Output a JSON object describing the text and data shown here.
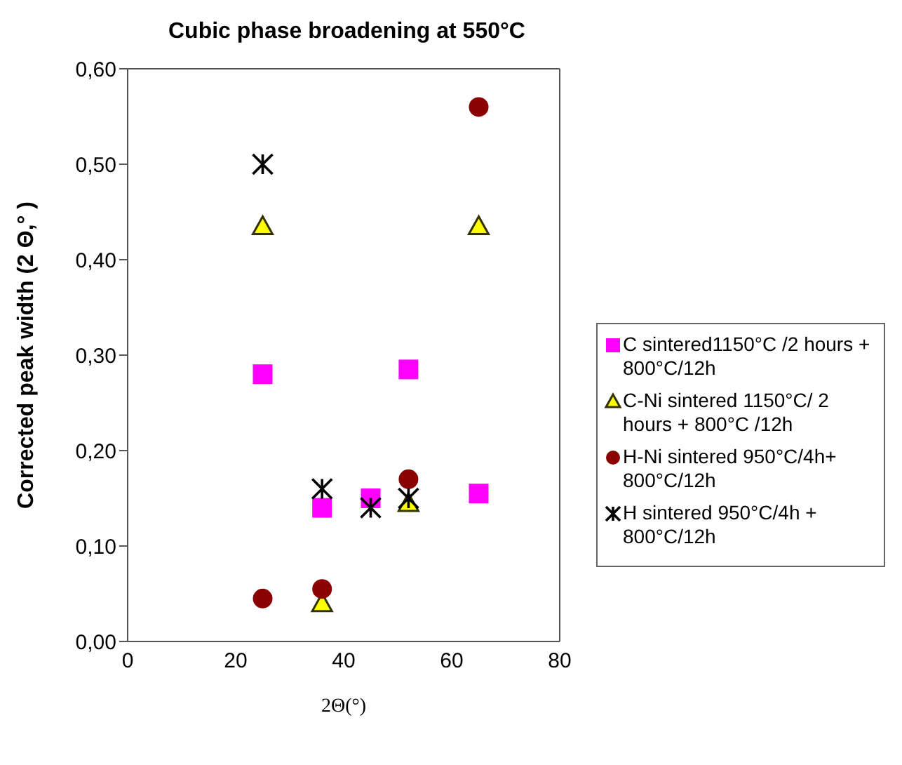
{
  "chart_data": {
    "type": "scatter",
    "title": "Cubic phase broadening at 550°C",
    "xlabel": "2Θ(°)",
    "ylabel": "Corrected peak width (2 Θ,° )",
    "xlim": [
      0,
      80
    ],
    "xticks": [
      0,
      20,
      40,
      60,
      80
    ],
    "ylim": [
      0,
      0.6
    ],
    "yticks": [
      {
        "value": 0,
        "label": "0,00"
      },
      {
        "value": 0.1,
        "label": "0,10"
      },
      {
        "value": 0.2,
        "label": "0,20"
      },
      {
        "value": 0.3,
        "label": "0,30"
      },
      {
        "value": 0.4,
        "label": "0,40"
      },
      {
        "value": 0.5,
        "label": "0,50"
      },
      {
        "value": 0.6,
        "label": "0,60"
      }
    ],
    "legend": "right",
    "grid": false,
    "series": [
      {
        "name": "C sintered1150°C /2 hours + 800°C/12h",
        "color": "#ff00ff",
        "marker": "square",
        "x": [
          25,
          36,
          45,
          52,
          65
        ],
        "values": [
          0.28,
          0.14,
          0.15,
          0.285,
          0.155
        ]
      },
      {
        "name": "C-Ni sintered 1150°C/ 2 hours + 800°C /12h",
        "color": "#ffff00",
        "marker": "triangle",
        "x": [
          25,
          36,
          52,
          65
        ],
        "values": [
          0.435,
          0.04,
          0.145,
          0.435
        ]
      },
      {
        "name": "H-Ni sintered 950°C/4h+ 800°C/12h",
        "color": "#8b0000",
        "marker": "circle",
        "x": [
          25,
          36,
          52,
          65
        ],
        "values": [
          0.045,
          0.055,
          0.17,
          0.56
        ]
      },
      {
        "name": "H sintered 950°C/4h + 800°C/12h",
        "color": "#000000",
        "marker": "cross",
        "x": [
          25,
          36,
          45,
          52
        ],
        "values": [
          0.5,
          0.16,
          0.14,
          0.15
        ]
      }
    ]
  }
}
